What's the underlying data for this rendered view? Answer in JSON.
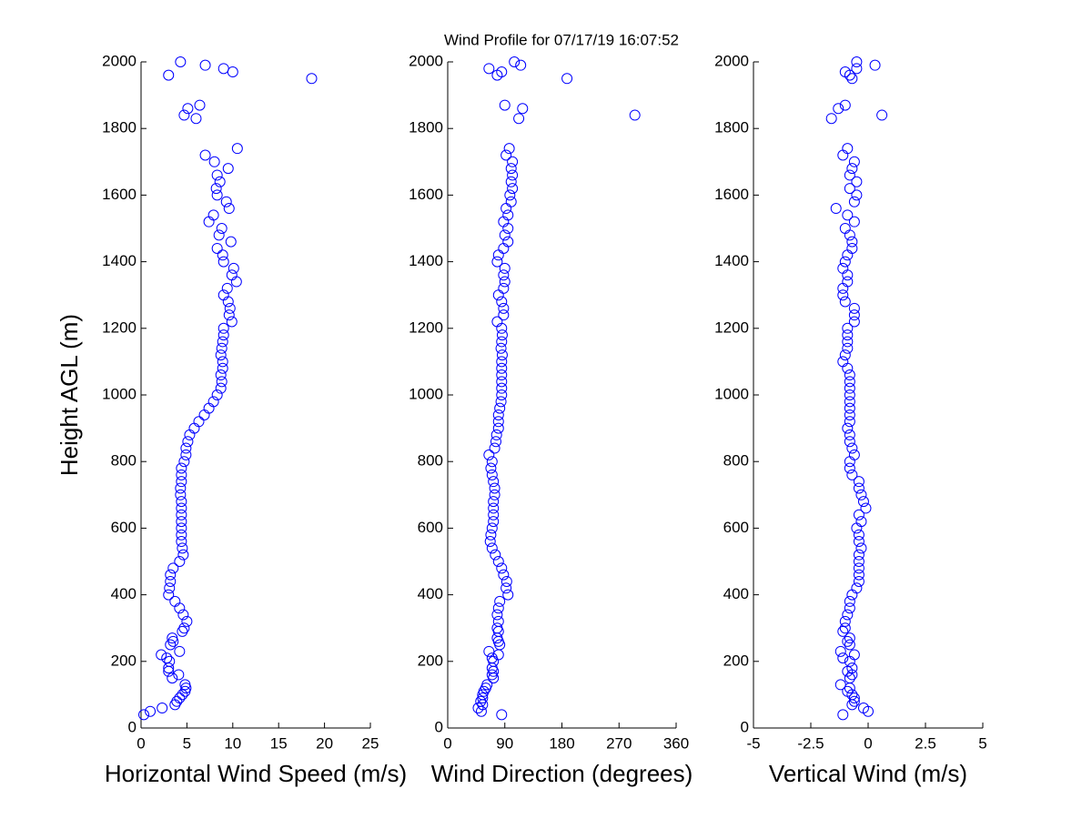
{
  "title": "Wind Profile for  07/17/19 16:07:52",
  "chart_data": [
    {
      "type": "scatter",
      "xlabel": "Horizontal Wind Speed (m/s)",
      "ylabel": "Height AGL (m)",
      "color": "#0000ff",
      "xlim": [
        0,
        25
      ],
      "xticks": [
        0,
        5,
        10,
        15,
        20,
        25
      ],
      "ylim": [
        0,
        2000
      ],
      "yticks": [
        0,
        200,
        400,
        600,
        800,
        1000,
        1200,
        1400,
        1600,
        1800,
        2000
      ],
      "y": [
        40,
        50,
        60,
        70,
        80,
        90,
        100,
        110,
        120,
        130,
        150,
        160,
        170,
        180,
        200,
        210,
        220,
        230,
        250,
        260,
        270,
        290,
        300,
        320,
        340,
        360,
        380,
        400,
        420,
        440,
        460,
        480,
        500,
        520,
        540,
        560,
        580,
        600,
        620,
        640,
        660,
        680,
        700,
        720,
        740,
        760,
        780,
        800,
        820,
        840,
        860,
        880,
        900,
        920,
        940,
        960,
        980,
        1000,
        1020,
        1040,
        1060,
        1080,
        1100,
        1120,
        1140,
        1160,
        1180,
        1200,
        1220,
        1240,
        1260,
        1280,
        1300,
        1320,
        1340,
        1360,
        1380,
        1400,
        1420,
        1440,
        1460,
        1480,
        1500,
        1520,
        1540,
        1560,
        1580,
        1600,
        1620,
        1640,
        1660,
        1680,
        1700,
        1720,
        1740,
        1830,
        1840,
        1860,
        1870,
        1950,
        1960,
        1970,
        1980,
        1990,
        2000
      ],
      "x": [
        0.3,
        1.0,
        2.3,
        3.7,
        3.9,
        4.2,
        4.5,
        4.8,
        4.9,
        4.8,
        3.4,
        4.1,
        3.0,
        3.0,
        3.1,
        2.8,
        2.2,
        4.2,
        3.2,
        3.5,
        3.4,
        4.5,
        4.7,
        5.0,
        4.6,
        4.2,
        3.7,
        3.0,
        3.1,
        3.2,
        3.2,
        3.5,
        4.2,
        4.6,
        4.5,
        4.4,
        4.4,
        4.4,
        4.4,
        4.4,
        4.4,
        4.4,
        4.3,
        4.3,
        4.4,
        4.4,
        4.4,
        4.7,
        4.9,
        4.9,
        5.1,
        5.3,
        5.8,
        6.3,
        6.9,
        7.4,
        7.9,
        8.3,
        8.7,
        8.8,
        8.7,
        8.9,
        8.9,
        8.7,
        8.8,
        8.9,
        9.0,
        9.0,
        9.9,
        9.6,
        9.7,
        9.5,
        9.0,
        9.4,
        10.4,
        9.9,
        10.1,
        9.0,
        8.9,
        8.3,
        9.8,
        8.5,
        8.8,
        7.4,
        7.9,
        9.6,
        9.3,
        8.3,
        8.2,
        8.6,
        8.3,
        9.5,
        8.0,
        7.0,
        10.5,
        6.0,
        4.7,
        5.1,
        6.4,
        18.6,
        3.0,
        10.0,
        9.0,
        7.0,
        4.3
      ]
    },
    {
      "type": "scatter",
      "xlabel": "Wind Direction (degrees)",
      "color": "#0000ff",
      "xlim": [
        0,
        360
      ],
      "xticks": [
        0,
        90,
        180,
        270,
        360
      ],
      "ylim": [
        0,
        2000
      ],
      "yticks": [
        0,
        200,
        400,
        600,
        800,
        1000,
        1200,
        1400,
        1600,
        1800,
        2000
      ],
      "y": [
        40,
        50,
        60,
        70,
        80,
        90,
        100,
        110,
        120,
        130,
        150,
        160,
        170,
        180,
        200,
        210,
        220,
        230,
        250,
        260,
        270,
        290,
        300,
        320,
        340,
        360,
        380,
        400,
        420,
        440,
        460,
        480,
        500,
        520,
        540,
        560,
        580,
        600,
        620,
        640,
        660,
        680,
        700,
        720,
        740,
        760,
        780,
        800,
        820,
        840,
        860,
        880,
        900,
        920,
        940,
        960,
        980,
        1000,
        1020,
        1040,
        1060,
        1080,
        1100,
        1120,
        1140,
        1160,
        1180,
        1200,
        1220,
        1240,
        1260,
        1280,
        1300,
        1320,
        1340,
        1360,
        1380,
        1400,
        1420,
        1440,
        1460,
        1480,
        1500,
        1520,
        1540,
        1560,
        1580,
        1600,
        1620,
        1640,
        1660,
        1680,
        1700,
        1720,
        1740,
        1830,
        1840,
        1860,
        1870,
        1950,
        1960,
        1970,
        1980,
        1990,
        2000
      ],
      "x": [
        85,
        53,
        48,
        55,
        52,
        55,
        55,
        57,
        60,
        62,
        72,
        70,
        72,
        70,
        72,
        70,
        80,
        65,
        82,
        80,
        78,
        80,
        78,
        80,
        78,
        80,
        82,
        95,
        92,
        93,
        88,
        85,
        80,
        75,
        70,
        67,
        68,
        70,
        72,
        72,
        72,
        72,
        74,
        74,
        72,
        70,
        68,
        70,
        65,
        74,
        76,
        77,
        80,
        80,
        80,
        82,
        84,
        85,
        85,
        85,
        85,
        85,
        85,
        86,
        84,
        85,
        86,
        85,
        78,
        88,
        88,
        85,
        80,
        88,
        90,
        88,
        90,
        78,
        80,
        88,
        95,
        90,
        95,
        88,
        95,
        92,
        100,
        98,
        102,
        100,
        102,
        100,
        102,
        92,
        97,
        112,
        295,
        118,
        90,
        188,
        78,
        85,
        65,
        115,
        105
      ]
    },
    {
      "type": "scatter",
      "xlabel": "Vertical Wind (m/s)",
      "color": "#0000ff",
      "xlim": [
        -5,
        5
      ],
      "xticks": [
        -5,
        -2.5,
        0,
        2.5,
        5
      ],
      "ylim": [
        0,
        2000
      ],
      "yticks": [
        0,
        200,
        400,
        600,
        800,
        1000,
        1200,
        1400,
        1600,
        1800,
        2000
      ],
      "y": [
        40,
        50,
        60,
        70,
        80,
        90,
        100,
        110,
        120,
        130,
        150,
        160,
        170,
        180,
        200,
        210,
        220,
        230,
        250,
        260,
        270,
        290,
        300,
        320,
        340,
        360,
        380,
        400,
        420,
        440,
        460,
        480,
        500,
        520,
        540,
        560,
        580,
        600,
        620,
        640,
        660,
        680,
        700,
        720,
        740,
        760,
        780,
        800,
        820,
        840,
        860,
        880,
        900,
        920,
        940,
        960,
        980,
        1000,
        1020,
        1040,
        1060,
        1080,
        1100,
        1120,
        1140,
        1160,
        1180,
        1200,
        1220,
        1240,
        1260,
        1280,
        1300,
        1320,
        1340,
        1360,
        1380,
        1400,
        1420,
        1440,
        1460,
        1480,
        1500,
        1520,
        1540,
        1560,
        1580,
        1600,
        1620,
        1640,
        1660,
        1680,
        1700,
        1720,
        1740,
        1830,
        1840,
        1860,
        1870,
        1950,
        1960,
        1970,
        1980,
        1990,
        2000
      ],
      "x": [
        -1.1,
        0,
        -0.2,
        -0.7,
        -0.6,
        -0.6,
        -0.7,
        -0.9,
        -0.8,
        -1.2,
        -0.8,
        -0.7,
        -0.9,
        -0.7,
        -0.8,
        -1.1,
        -0.6,
        -1.2,
        -0.8,
        -0.9,
        -0.8,
        -1.1,
        -1.0,
        -1.0,
        -0.9,
        -0.8,
        -0.8,
        -0.7,
        -0.5,
        -0.4,
        -0.4,
        -0.4,
        -0.4,
        -0.4,
        -0.3,
        -0.4,
        -0.4,
        -0.5,
        -0.3,
        -0.4,
        -0.1,
        -0.2,
        -0.3,
        -0.4,
        -0.4,
        -0.7,
        -0.8,
        -0.8,
        -0.6,
        -0.7,
        -0.8,
        -0.8,
        -0.9,
        -0.8,
        -0.8,
        -0.8,
        -0.8,
        -0.8,
        -0.8,
        -0.8,
        -0.8,
        -0.9,
        -1.1,
        -1.0,
        -0.9,
        -0.9,
        -0.9,
        -0.9,
        -0.6,
        -0.6,
        -0.6,
        -1.0,
        -1.1,
        -1.1,
        -0.9,
        -0.9,
        -1.1,
        -1.0,
        -0.9,
        -0.7,
        -0.7,
        -0.8,
        -1.0,
        -0.6,
        -0.9,
        -1.4,
        -0.6,
        -0.5,
        -0.8,
        -0.5,
        -0.8,
        -0.7,
        -0.6,
        -1.1,
        -0.9,
        -1.6,
        0.6,
        -1.3,
        -1.0,
        -0.7,
        -0.8,
        -1.0,
        -0.5,
        0.3,
        -0.5
      ]
    }
  ]
}
